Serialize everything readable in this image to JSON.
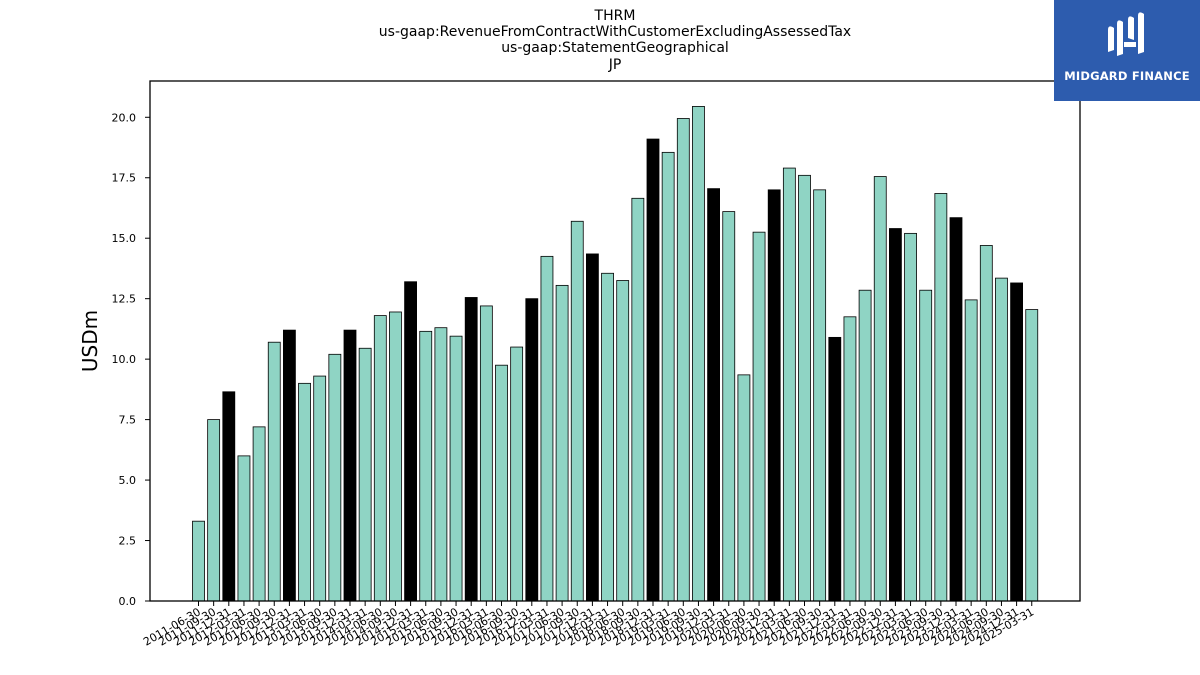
{
  "chart_data": {
    "type": "bar",
    "title_lines": [
      "THRM",
      "us-gaap:RevenueFromContractWithCustomerExcludingAssessedTax",
      "us-gaap:StatementGeographical",
      "JP"
    ],
    "xlabel": "",
    "ylabel": "USDm",
    "ylim": [
      0,
      21.5
    ],
    "yticks": [
      "0.0",
      "2.5",
      "5.0",
      "7.5",
      "10.0",
      "12.5",
      "15.0",
      "17.5",
      "20.0"
    ],
    "grid": false,
    "legend": "none",
    "colors": {
      "normal": "#8fd4c4",
      "highlight": "#000000",
      "edge": "#000000"
    },
    "categories": [
      "2011-06-30",
      "2011-09-30",
      "2011-12-31",
      "2012-03-31",
      "2012-06-30",
      "2012-09-30",
      "2012-12-31",
      "2013-03-31",
      "2013-06-30",
      "2013-09-30",
      "2013-12-31",
      "2014-03-31",
      "2014-06-30",
      "2014-09-30",
      "2014-12-31",
      "2015-03-31",
      "2015-06-30",
      "2015-09-30",
      "2015-12-31",
      "2016-03-31",
      "2016-06-30",
      "2016-09-30",
      "2016-12-31",
      "2017-03-31",
      "2017-06-30",
      "2017-09-30",
      "2017-12-31",
      "2018-03-31",
      "2018-06-30",
      "2018-09-30",
      "2018-12-31",
      "2019-03-31",
      "2019-06-30",
      "2019-09-30",
      "2019-12-31",
      "2020-03-31",
      "2020-06-30",
      "2020-09-30",
      "2020-12-31",
      "2021-03-31",
      "2021-06-30",
      "2021-09-30",
      "2021-12-31",
      "2022-03-31",
      "2022-06-30",
      "2022-09-30",
      "2022-12-31",
      "2023-03-31",
      "2023-06-30",
      "2023-09-30",
      "2023-12-31",
      "2024-03-31",
      "2024-06-30",
      "2024-09-30",
      "2024-12-31",
      "2025-03-31"
    ],
    "values": [
      3.3,
      7.5,
      8.65,
      6.0,
      7.2,
      10.7,
      11.2,
      9.0,
      9.3,
      10.2,
      11.2,
      10.45,
      11.8,
      11.95,
      13.2,
      11.15,
      11.3,
      10.95,
      12.55,
      12.2,
      9.75,
      10.5,
      12.5,
      14.25,
      13.05,
      15.7,
      14.35,
      13.55,
      13.25,
      16.65,
      19.1,
      18.55,
      19.95,
      20.45,
      17.05,
      16.1,
      9.35,
      15.25,
      17.0,
      17.9,
      17.6,
      17.0,
      10.9,
      11.75,
      12.85,
      17.55,
      15.4,
      15.2,
      12.85,
      16.85,
      15.85,
      12.45,
      14.7,
      13.35,
      13.15,
      12.05
    ],
    "highlight": [
      false,
      false,
      true,
      false,
      false,
      false,
      true,
      false,
      false,
      false,
      true,
      false,
      false,
      false,
      true,
      false,
      false,
      false,
      true,
      false,
      false,
      false,
      true,
      false,
      false,
      false,
      true,
      false,
      false,
      false,
      true,
      false,
      false,
      false,
      true,
      false,
      false,
      false,
      true,
      false,
      false,
      false,
      true,
      false,
      false,
      false,
      true,
      false,
      false,
      false,
      true,
      false,
      false,
      false,
      true,
      false
    ]
  },
  "logo": {
    "text": "MIDGARD FINANCE",
    "background": "#2d5cae",
    "icon": "midgard-logo-icon"
  }
}
